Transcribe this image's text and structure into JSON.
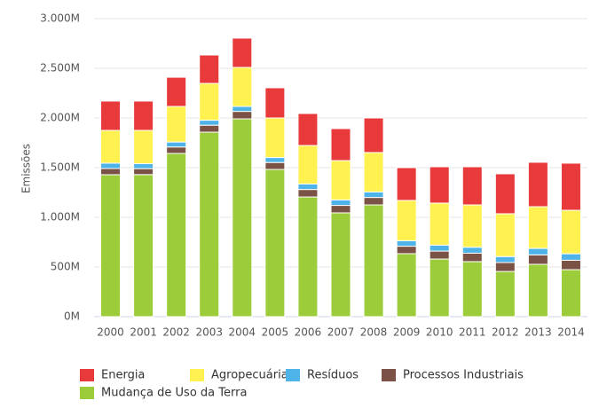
{
  "chart_data": {
    "type": "stacked_bar",
    "y_label": "Emissões",
    "categories": [
      "2000",
      "2001",
      "2002",
      "2003",
      "2004",
      "2005",
      "2006",
      "2007",
      "2008",
      "2009",
      "2010",
      "2011",
      "2012",
      "2013",
      "2014"
    ],
    "series": [
      {
        "name": "Energia",
        "color": "#e83a3a",
        "values": [
          295,
          295,
          294,
          286,
          295,
          304,
          322,
          322,
          348,
          330,
          366,
          384,
          402,
          447,
          474
        ]
      },
      {
        "name": "Agropecuária",
        "color": "#fff150",
        "values": [
          330,
          335,
          358,
          371,
          393,
          398,
          388,
          396,
          397,
          406,
          423,
          426,
          431,
          420,
          438
        ]
      },
      {
        "name": "Resíduos",
        "color": "#4db3e8",
        "values": [
          54,
          50,
          50,
          50,
          50,
          50,
          55,
          55,
          55,
          55,
          60,
          60,
          60,
          65,
          65
        ]
      },
      {
        "name": "Processos Industriais",
        "color": "#7a5246",
        "values": [
          62,
          60,
          65,
          70,
          75,
          70,
          75,
          75,
          75,
          75,
          80,
          85,
          90,
          95,
          95
        ]
      },
      {
        "name": "Mudança de Uso da Terra",
        "color": "#9ccc3a",
        "values": [
          1429,
          1430,
          1643,
          1857,
          1991,
          1482,
          1205,
          1045,
          1125,
          634,
          580,
          554,
          455,
          527,
          473
        ]
      }
    ],
    "ylim": [
      0,
      3000
    ],
    "yticks": [
      {
        "value": 0,
        "label": "0M"
      },
      {
        "value": 500,
        "label": "500M"
      },
      {
        "value": 1000,
        "label": "1.000M"
      },
      {
        "value": 1500,
        "label": "1.500M"
      },
      {
        "value": 2000,
        "label": "2.000M"
      },
      {
        "value": 2500,
        "label": "2.500M"
      },
      {
        "value": 3000,
        "label": "3.000M"
      }
    ],
    "grid": true
  }
}
